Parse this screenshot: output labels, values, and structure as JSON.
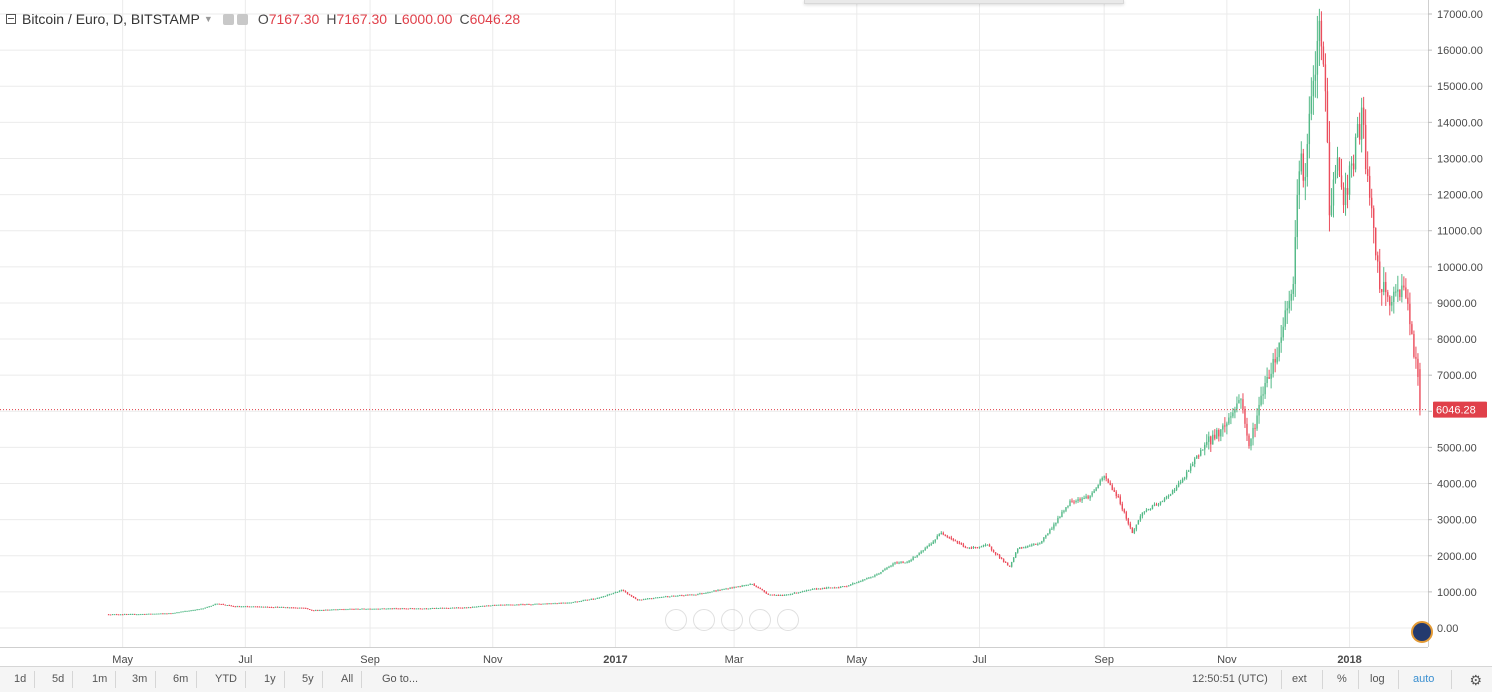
{
  "legend": {
    "symbol": "Bitcoin / Euro, D, BITSTAMP",
    "open_key": "O",
    "open": "7167.30",
    "high_key": "H",
    "high": "7167.30",
    "low_key": "L",
    "low": "6000.00",
    "close_key": "C",
    "close": "6046.28"
  },
  "colors": {
    "up": "#53b987",
    "down": "#eb4d5c",
    "grid": "#ebebeb",
    "axis_text": "#4a4a4a",
    "price_line": "#e0404a"
  },
  "chart_data": {
    "type": "candlestick",
    "yticks": [
      "0.00",
      "1000.00",
      "2000.00",
      "3000.00",
      "4000.00",
      "5000.00",
      "6000.00",
      "7000.00",
      "8000.00",
      "9000.00",
      "10000.00",
      "11000.00",
      "12000.00",
      "13000.00",
      "14000.00",
      "15000.00",
      "16000.00",
      "17000.00"
    ],
    "ylim": [
      -300,
      17300
    ],
    "xlabels": [
      {
        "label": "May",
        "date": "2016-05-01",
        "bold": false
      },
      {
        "label": "Jul",
        "date": "2016-07-01",
        "bold": false
      },
      {
        "label": "Sep",
        "date": "2016-09-01",
        "bold": false
      },
      {
        "label": "Nov",
        "date": "2016-11-01",
        "bold": false
      },
      {
        "label": "2017",
        "date": "2017-01-01",
        "bold": true
      },
      {
        "label": "Mar",
        "date": "2017-03-01",
        "bold": false
      },
      {
        "label": "May",
        "date": "2017-05-01",
        "bold": false
      },
      {
        "label": "Jul",
        "date": "2017-07-01",
        "bold": false
      },
      {
        "label": "Sep",
        "date": "2017-09-01",
        "bold": false
      },
      {
        "label": "Nov",
        "date": "2017-11-01",
        "bold": false
      },
      {
        "label": "2018",
        "date": "2018-01-01",
        "bold": true
      }
    ],
    "xlim": [
      "2016-03-01",
      "2018-02-09"
    ],
    "last_price": 6046.28,
    "last_price_label": "6046.28",
    "series": [
      {
        "name": "close",
        "points": [
          [
            "2016-04-24",
            380
          ],
          [
            "2016-05-10",
            385
          ],
          [
            "2016-05-25",
            410
          ],
          [
            "2016-06-10",
            540
          ],
          [
            "2016-06-17",
            680
          ],
          [
            "2016-06-25",
            600
          ],
          [
            "2016-07-10",
            590
          ],
          [
            "2016-07-30",
            560
          ],
          [
            "2016-08-03",
            490
          ],
          [
            "2016-08-20",
            525
          ],
          [
            "2016-09-10",
            540
          ],
          [
            "2016-09-30",
            545
          ],
          [
            "2016-10-20",
            570
          ],
          [
            "2016-10-31",
            630
          ],
          [
            "2016-11-20",
            660
          ],
          [
            "2016-12-10",
            710
          ],
          [
            "2016-12-25",
            850
          ],
          [
            "2017-01-04",
            1050
          ],
          [
            "2017-01-12",
            770
          ],
          [
            "2017-01-25",
            870
          ],
          [
            "2017-02-10",
            930
          ],
          [
            "2017-02-25",
            1090
          ],
          [
            "2017-03-10",
            1220
          ],
          [
            "2017-03-18",
            930
          ],
          [
            "2017-03-25",
            900
          ],
          [
            "2017-04-10",
            1080
          ],
          [
            "2017-04-25",
            1150
          ],
          [
            "2017-05-10",
            1450
          ],
          [
            "2017-05-20",
            1800
          ],
          [
            "2017-05-26",
            1830
          ],
          [
            "2017-06-01",
            2050
          ],
          [
            "2017-06-08",
            2400
          ],
          [
            "2017-06-12",
            2650
          ],
          [
            "2017-06-25",
            2200
          ],
          [
            "2017-07-05",
            2290
          ],
          [
            "2017-07-16",
            1680
          ],
          [
            "2017-07-20",
            2200
          ],
          [
            "2017-07-31",
            2350
          ],
          [
            "2017-08-06",
            2780
          ],
          [
            "2017-08-15",
            3500
          ],
          [
            "2017-08-25",
            3650
          ],
          [
            "2017-09-01",
            4200
          ],
          [
            "2017-09-08",
            3600
          ],
          [
            "2017-09-15",
            2630
          ],
          [
            "2017-09-20",
            3200
          ],
          [
            "2017-09-30",
            3500
          ],
          [
            "2017-10-10",
            4100
          ],
          [
            "2017-10-20",
            5000
          ],
          [
            "2017-10-31",
            5600
          ],
          [
            "2017-11-08",
            6400
          ],
          [
            "2017-11-12",
            5000
          ],
          [
            "2017-11-20",
            6800
          ],
          [
            "2017-11-26",
            7600
          ],
          [
            "2017-11-30",
            8700
          ],
          [
            "2017-12-04",
            9700
          ],
          [
            "2017-12-07",
            13000
          ],
          [
            "2017-12-10",
            12500
          ],
          [
            "2017-12-12",
            14000
          ],
          [
            "2017-12-15",
            15500
          ],
          [
            "2017-12-17",
            16500
          ],
          [
            "2017-12-20",
            15000
          ],
          [
            "2017-12-22",
            11500
          ],
          [
            "2017-12-26",
            13000
          ],
          [
            "2017-12-29",
            11800
          ],
          [
            "2018-01-03",
            13000
          ],
          [
            "2018-01-07",
            14200
          ],
          [
            "2018-01-11",
            11800
          ],
          [
            "2018-01-16",
            9500
          ],
          [
            "2018-01-22",
            9000
          ],
          [
            "2018-01-28",
            9600
          ],
          [
            "2018-02-01",
            8000
          ],
          [
            "2018-02-04",
            6900
          ],
          [
            "2018-02-05",
            6046
          ]
        ]
      }
    ]
  },
  "zoom_controls": [
    "zoom-out",
    "reset",
    "zoom-in",
    "scroll-left",
    "scroll-right"
  ],
  "bottom_bar": {
    "ranges": [
      "1d",
      "5d",
      "1m",
      "3m",
      "6m",
      "YTD",
      "1y",
      "5y",
      "All"
    ],
    "goto": "Go to...",
    "time": "12:50:51 (UTC)",
    "ext": "ext",
    "percent": "%",
    "log": "log",
    "auto": "auto"
  }
}
